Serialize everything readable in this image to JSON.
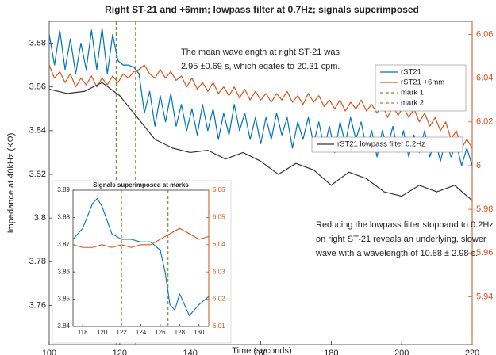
{
  "chart_data": [
    {
      "type": "line",
      "title": "Right ST-21 and +6mm; lowpass filter at 0.7Hz; signals superimposed",
      "xlabel": "Time (seconds)",
      "ylabel": "Impedance at 40kHz (KΩ)",
      "xlim": [
        100,
        220
      ],
      "xticks": [
        100,
        120,
        140,
        160,
        180,
        200,
        220
      ],
      "ylim": [
        3.742,
        3.89
      ],
      "yticks": [
        3.76,
        3.78,
        3.8,
        3.82,
        3.84,
        3.86,
        3.88
      ],
      "y2lim": [
        5.918,
        6.066
      ],
      "y2ticks": [
        5.94,
        5.96,
        5.98,
        6,
        6.02,
        6.04,
        6.06
      ],
      "y2color": "#d95319",
      "grid": false,
      "legend": "northeast",
      "x": [
        100,
        101.5,
        103,
        104.5,
        106,
        107.5,
        109,
        110.5,
        112,
        113.5,
        115,
        116.5,
        118,
        119.5,
        121,
        122.5,
        124,
        125.5,
        127,
        128.5,
        130,
        131.5,
        133,
        134.5,
        136,
        137.5,
        139,
        140.5,
        142,
        143.5,
        145,
        146.5,
        148,
        149.5,
        151,
        152.5,
        154,
        155.5,
        157,
        158.5,
        160,
        161.5,
        163,
        164.5,
        166,
        167.5,
        169,
        170.5,
        172,
        173.5,
        175,
        176.5,
        178,
        179.5,
        181,
        182.5,
        184,
        185.5,
        187,
        188.5,
        190,
        191.5,
        193,
        194.5,
        196,
        197.5,
        199,
        200.5,
        202,
        203.5,
        205,
        206.5,
        208,
        209.5,
        211,
        212.5,
        214,
        215.5,
        217,
        218.5,
        220
      ],
      "series": [
        {
          "name": "rST21",
          "color": "#0072bd",
          "values": [
            3.884,
            3.87,
            3.886,
            3.868,
            3.882,
            3.866,
            3.88,
            3.868,
            3.886,
            3.868,
            3.887,
            3.866,
            3.884,
            3.872,
            3.87,
            3.87,
            3.869,
            3.866,
            3.848,
            3.858,
            3.842,
            3.856,
            3.844,
            3.857,
            3.842,
            3.852,
            3.84,
            3.85,
            3.838,
            3.852,
            3.84,
            3.85,
            3.836,
            3.848,
            3.838,
            3.852,
            3.84,
            3.848,
            3.836,
            3.846,
            3.834,
            3.846,
            3.836,
            3.848,
            3.838,
            3.846,
            3.832,
            3.844,
            3.836,
            3.846,
            3.834,
            3.844,
            3.832,
            3.842,
            3.83,
            3.844,
            3.834,
            3.846,
            3.836,
            3.844,
            3.832,
            3.84,
            3.828,
            3.84,
            3.832,
            3.842,
            3.83,
            3.84,
            3.828,
            3.838,
            3.83,
            3.84,
            3.828,
            3.836,
            3.826,
            3.836,
            3.828,
            3.834,
            3.824,
            3.832,
            3.824
          ]
        },
        {
          "name": "rST21 +6mm",
          "color": "#d95319",
          "axis": "y2",
          "values": [
            6.046,
            6.04,
            6.043,
            6.038,
            6.042,
            6.036,
            6.04,
            6.037,
            6.041,
            6.036,
            6.04,
            6.037,
            6.041,
            6.038,
            6.042,
            6.04,
            6.043,
            6.044,
            6.046,
            6.042,
            6.04,
            6.044,
            6.04,
            6.043,
            6.039,
            6.041,
            6.036,
            6.04,
            6.035,
            6.038,
            6.034,
            6.038,
            6.033,
            6.036,
            6.032,
            6.036,
            6.031,
            6.035,
            6.03,
            6.034,
            6.03,
            6.033,
            6.029,
            6.033,
            6.03,
            6.034,
            6.029,
            6.032,
            6.028,
            6.033,
            6.029,
            6.032,
            6.027,
            6.03,
            6.026,
            6.03,
            6.025,
            6.029,
            6.026,
            6.03,
            6.025,
            6.028,
            6.024,
            6.028,
            6.022,
            6.027,
            6.023,
            6.027,
            6.022,
            6.026,
            6.02,
            6.024,
            6.018,
            6.022,
            6.016,
            6.02,
            6.012,
            6.016,
            6.008,
            6.012,
            6.008
          ]
        },
        {
          "name": "rST21 lowpass filter 0.2Hz",
          "color": "#333333",
          "x": [
            100,
            105,
            110,
            115,
            120,
            125,
            130,
            135,
            140,
            145,
            150,
            155,
            160,
            165,
            170,
            175,
            180,
            185,
            190,
            195,
            200,
            205,
            210,
            215,
            220
          ],
          "values": [
            3.859,
            3.857,
            3.858,
            3.862,
            3.856,
            3.846,
            3.836,
            3.832,
            3.83,
            3.831,
            3.827,
            3.83,
            3.826,
            3.82,
            3.825,
            3.822,
            3.815,
            3.821,
            3.818,
            3.812,
            3.81,
            3.815,
            3.812,
            3.815,
            3.808
          ]
        }
      ],
      "marks": [
        {
          "name": "mark 1",
          "x": 119,
          "color": "#7a8f3a"
        },
        {
          "name": "mark 2",
          "x": 124.5,
          "color": "#7a8f3a"
        }
      ],
      "annotations": [
        [
          "The mean wavelength at right ST-21 was",
          "2.95 ±0.69 s, which eqates to 20.31 cpm."
        ],
        [
          "Reducing the lowpass filter stopband to 0.2Hz",
          "on right ST-21 reveals an underlying, slower",
          "wave with a wavelength of 10.88 ± 2.98 s."
        ]
      ]
    },
    {
      "type": "line",
      "title": "Signals superimposed at marks",
      "xlim": [
        117,
        131
      ],
      "xticks": [
        118,
        120,
        122,
        124,
        126,
        128,
        130
      ],
      "ylim": [
        3.84,
        3.89
      ],
      "yticks": [
        3.84,
        3.85,
        3.86,
        3.87,
        3.88,
        3.89
      ],
      "y2lim": [
        6.01,
        6.06
      ],
      "y2ticks": [
        6.01,
        6.02,
        6.03,
        6.04,
        6.05,
        6.06
      ],
      "y2color": "#d95319",
      "grid": false,
      "series": [
        {
          "color": "#0072bd",
          "x": [
            117,
            118,
            119,
            119.5,
            120,
            121,
            122,
            123,
            124,
            125,
            126,
            126.5,
            127,
            127.5,
            128,
            129,
            130,
            131
          ],
          "values": [
            3.872,
            3.876,
            3.885,
            3.887,
            3.884,
            3.874,
            3.872,
            3.872,
            3.871,
            3.871,
            3.868,
            3.86,
            3.848,
            3.846,
            3.852,
            3.844,
            3.848,
            3.851
          ]
        },
        {
          "color": "#d95319",
          "axis": "y2",
          "x": [
            117,
            118,
            119,
            120,
            121,
            122,
            123,
            124,
            125,
            126,
            127,
            128,
            129,
            130,
            131
          ],
          "values": [
            6.04,
            6.039,
            6.039,
            6.04,
            6.039,
            6.04,
            6.039,
            6.04,
            6.04,
            6.042,
            6.044,
            6.046,
            6.044,
            6.042,
            6.043
          ]
        }
      ],
      "marks": [
        {
          "x": 122,
          "color": "#7a8f3a"
        },
        {
          "x": 126.8,
          "color": "#7a8f3a"
        }
      ]
    }
  ]
}
